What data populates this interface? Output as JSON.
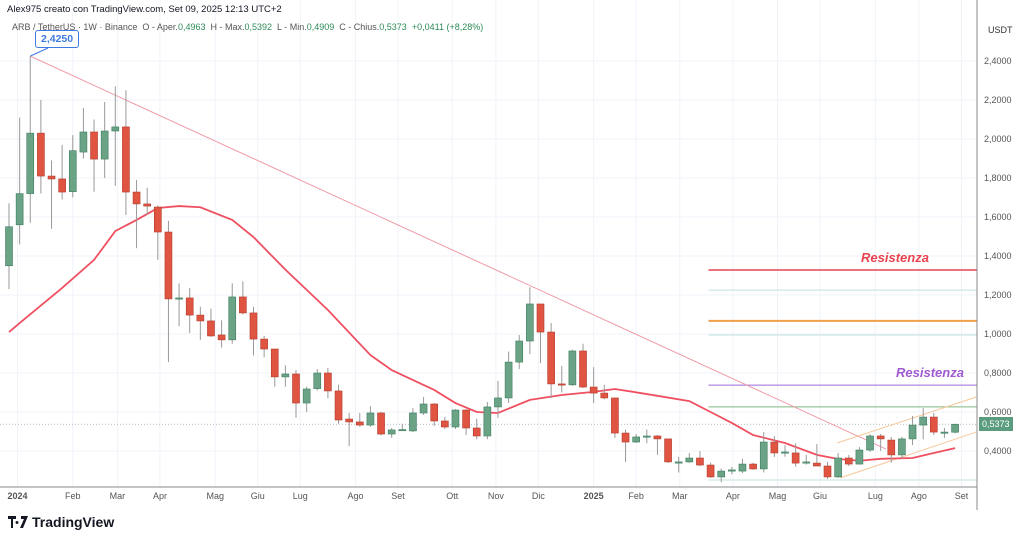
{
  "header": {
    "text": "Alex975 creato con TradingView.com, Set 09, 2025 12:13 UTC+2"
  },
  "legend": {
    "symbol": "ARB / TetherUS · 1W · Binance",
    "open_label": "O - Aper.",
    "open": "0,4963",
    "high_label": "H - Max.",
    "high": "0,5392",
    "low_label": "L - Min.",
    "low": "0,4909",
    "close_label": "C - Chius.",
    "close": "0,5373",
    "change": "+0,0411 (+8,28%)"
  },
  "brand": {
    "name": "TradingView"
  },
  "colors": {
    "up": "#6aa386",
    "down": "#e05541",
    "ma": "#ef5061",
    "trendline": "#f09aa6",
    "resistance_red": "#e8434e",
    "orange": "#f0a04b",
    "purple": "#9c6ade",
    "green_line": "#7fb87f",
    "fib": "#bfe3dc",
    "callout": "#3d7be0"
  },
  "chart_data": {
    "type": "candlestick",
    "currency_label": "USDT",
    "ylim": [
      0.2,
      2.6
    ],
    "yticks": [
      "0,4000",
      "0,6000",
      "0,8000",
      "1,0000",
      "1,2000",
      "1,4000",
      "1,6000",
      "1,8000",
      "2,0000",
      "2,2000",
      "2,4000"
    ],
    "ytick_values": [
      0.4,
      0.6,
      0.8,
      1.0,
      1.2,
      1.4,
      1.6,
      1.8,
      2.0,
      2.2,
      2.4
    ],
    "xticks": [
      {
        "label": "2024",
        "i": 0.8,
        "bold": true
      },
      {
        "label": "Feb",
        "i": 6
      },
      {
        "label": "Mar",
        "i": 10.2
      },
      {
        "label": "Apr",
        "i": 14.2
      },
      {
        "label": "Mag",
        "i": 19.4
      },
      {
        "label": "Giu",
        "i": 23.4
      },
      {
        "label": "Lug",
        "i": 27.4
      },
      {
        "label": "Ago",
        "i": 32.6
      },
      {
        "label": "Set",
        "i": 36.6
      },
      {
        "label": "Ott",
        "i": 41.7
      },
      {
        "label": "Nov",
        "i": 45.8
      },
      {
        "label": "Dic",
        "i": 49.8
      },
      {
        "label": "2025",
        "i": 55,
        "bold": true
      },
      {
        "label": "Feb",
        "i": 59
      },
      {
        "label": "Mar",
        "i": 63.1
      },
      {
        "label": "Apr",
        "i": 68.1
      },
      {
        "label": "Mag",
        "i": 72.3
      },
      {
        "label": "Giu",
        "i": 76.3
      },
      {
        "label": "Lug",
        "i": 81.5
      },
      {
        "label": "Ago",
        "i": 85.6
      },
      {
        "label": "Set",
        "i": 89.6
      }
    ],
    "candles_ohlc": [
      [
        1.35,
        1.67,
        1.23,
        1.55
      ],
      [
        1.56,
        2.11,
        1.46,
        1.72
      ],
      [
        1.72,
        2.425,
        1.57,
        2.03
      ],
      [
        2.03,
        2.2,
        1.72,
        1.81
      ],
      [
        1.81,
        1.89,
        1.54,
        1.795
      ],
      [
        1.795,
        1.97,
        1.69,
        1.728
      ],
      [
        1.73,
        2.02,
        1.7,
        1.94
      ],
      [
        1.933,
        2.16,
        1.9,
        2.036
      ],
      [
        2.036,
        2.1,
        1.73,
        1.897
      ],
      [
        1.897,
        2.19,
        1.8,
        2.041
      ],
      [
        2.041,
        2.27,
        1.76,
        2.062
      ],
      [
        2.062,
        2.25,
        1.61,
        1.728
      ],
      [
        1.728,
        1.79,
        1.44,
        1.667
      ],
      [
        1.667,
        1.75,
        1.61,
        1.656
      ],
      [
        1.651,
        1.66,
        1.38,
        1.523
      ],
      [
        1.523,
        1.58,
        0.856,
        1.18
      ],
      [
        1.18,
        1.26,
        1.04,
        1.185
      ],
      [
        1.185,
        1.236,
        1.005,
        1.097
      ],
      [
        1.097,
        1.14,
        0.97,
        1.067
      ],
      [
        1.067,
        1.13,
        0.985,
        0.99
      ],
      [
        0.995,
        1.07,
        0.93,
        0.97
      ],
      [
        0.97,
        1.26,
        0.95,
        1.19
      ],
      [
        1.19,
        1.27,
        1.1,
        1.108
      ],
      [
        1.108,
        1.14,
        0.89,
        0.974
      ],
      [
        0.974,
        0.99,
        0.88,
        0.923
      ],
      [
        0.923,
        0.923,
        0.73,
        0.78
      ],
      [
        0.78,
        0.84,
        0.73,
        0.795
      ],
      [
        0.795,
        0.815,
        0.57,
        0.646
      ],
      [
        0.646,
        0.73,
        0.6,
        0.718
      ],
      [
        0.72,
        0.82,
        0.71,
        0.8
      ],
      [
        0.8,
        0.826,
        0.67,
        0.708
      ],
      [
        0.708,
        0.74,
        0.54,
        0.559
      ],
      [
        0.564,
        0.595,
        0.425,
        0.549
      ],
      [
        0.549,
        0.595,
        0.525,
        0.533
      ],
      [
        0.533,
        0.63,
        0.525,
        0.595
      ],
      [
        0.595,
        0.6,
        0.48,
        0.487
      ],
      [
        0.487,
        0.518,
        0.467,
        0.508
      ],
      [
        0.508,
        0.54,
        0.503,
        0.51
      ],
      [
        0.503,
        0.62,
        0.497,
        0.595
      ],
      [
        0.595,
        0.677,
        0.585,
        0.641
      ],
      [
        0.641,
        0.646,
        0.528,
        0.554
      ],
      [
        0.554,
        0.575,
        0.513,
        0.523
      ],
      [
        0.523,
        0.615,
        0.513,
        0.61
      ],
      [
        0.61,
        0.615,
        0.482,
        0.518
      ],
      [
        0.518,
        0.565,
        0.46,
        0.477
      ],
      [
        0.477,
        0.651,
        0.46,
        0.626
      ],
      [
        0.626,
        0.76,
        0.57,
        0.672
      ],
      [
        0.672,
        0.91,
        0.646,
        0.856
      ],
      [
        0.856,
        0.995,
        0.82,
        0.964
      ],
      [
        0.964,
        1.24,
        0.897,
        1.154
      ],
      [
        1.154,
        1.154,
        0.85,
        1.01
      ],
      [
        1.01,
        1.056,
        0.672,
        0.744
      ],
      [
        0.744,
        0.836,
        0.7,
        0.739
      ],
      [
        0.739,
        0.92,
        0.734,
        0.913
      ],
      [
        0.913,
        0.95,
        0.723,
        0.728
      ],
      [
        0.728,
        0.83,
        0.646,
        0.697
      ],
      [
        0.697,
        0.74,
        0.665,
        0.672
      ],
      [
        0.672,
        0.672,
        0.467,
        0.492
      ],
      [
        0.492,
        0.51,
        0.344,
        0.446
      ],
      [
        0.446,
        0.487,
        0.441,
        0.472
      ],
      [
        0.472,
        0.51,
        0.44,
        0.477
      ],
      [
        0.477,
        0.482,
        0.38,
        0.462
      ],
      [
        0.462,
        0.462,
        0.339,
        0.344
      ],
      [
        0.344,
        0.37,
        0.29,
        0.344
      ],
      [
        0.344,
        0.39,
        0.339,
        0.364
      ],
      [
        0.364,
        0.4,
        0.323,
        0.328
      ],
      [
        0.328,
        0.34,
        0.262,
        0.267
      ],
      [
        0.267,
        0.31,
        0.24,
        0.297
      ],
      [
        0.303,
        0.318,
        0.28,
        0.303
      ],
      [
        0.297,
        0.36,
        0.287,
        0.333
      ],
      [
        0.333,
        0.34,
        0.303,
        0.308
      ],
      [
        0.308,
        0.497,
        0.29,
        0.446
      ],
      [
        0.446,
        0.477,
        0.37,
        0.39
      ],
      [
        0.395,
        0.43,
        0.37,
        0.395
      ],
      [
        0.39,
        0.44,
        0.32,
        0.338
      ],
      [
        0.344,
        0.38,
        0.33,
        0.344
      ],
      [
        0.338,
        0.436,
        0.323,
        0.323
      ],
      [
        0.323,
        0.344,
        0.257,
        0.267
      ],
      [
        0.267,
        0.39,
        0.262,
        0.364
      ],
      [
        0.364,
        0.38,
        0.323,
        0.333
      ],
      [
        0.333,
        0.42,
        0.33,
        0.405
      ],
      [
        0.405,
        0.487,
        0.395,
        0.477
      ],
      [
        0.477,
        0.487,
        0.4,
        0.462
      ],
      [
        0.456,
        0.472,
        0.34,
        0.38
      ],
      [
        0.38,
        0.472,
        0.36,
        0.462
      ],
      [
        0.462,
        0.58,
        0.43,
        0.533
      ],
      [
        0.533,
        0.62,
        0.46,
        0.574
      ],
      [
        0.574,
        0.595,
        0.482,
        0.497
      ],
      [
        0.497,
        0.518,
        0.467,
        0.497
      ],
      [
        0.4963,
        0.5392,
        0.4909,
        0.5373
      ]
    ],
    "moving_average": [
      [
        0,
        1.01
      ],
      [
        1,
        1.056
      ],
      [
        5,
        1.236
      ],
      [
        8,
        1.38
      ],
      [
        10,
        1.528
      ],
      [
        12,
        1.585
      ],
      [
        14,
        1.646
      ],
      [
        16,
        1.656
      ],
      [
        18,
        1.65
      ],
      [
        21,
        1.585
      ],
      [
        23,
        1.497
      ],
      [
        26,
        1.33
      ],
      [
        30,
        1.123
      ],
      [
        34,
        0.892
      ],
      [
        36,
        0.815
      ],
      [
        40,
        0.713
      ],
      [
        42,
        0.646
      ],
      [
        44,
        0.6
      ],
      [
        46,
        0.595
      ],
      [
        49,
        0.662
      ],
      [
        52,
        0.687
      ],
      [
        55,
        0.703
      ],
      [
        57,
        0.718
      ],
      [
        60,
        0.692
      ],
      [
        64,
        0.656
      ],
      [
        66,
        0.6
      ],
      [
        68,
        0.544
      ],
      [
        70,
        0.482
      ],
      [
        73,
        0.441
      ],
      [
        76,
        0.38
      ],
      [
        78,
        0.359
      ],
      [
        80,
        0.35
      ],
      [
        82,
        0.36
      ],
      [
        85,
        0.364
      ],
      [
        87,
        0.39
      ],
      [
        89,
        0.415
      ]
    ],
    "trendline": {
      "from": [
        2,
        2.425
      ],
      "to": [
        82.5,
        0.41
      ]
    },
    "channel": {
      "upper": {
        "from": [
          77.9,
          0.441
        ],
        "to": [
          91,
          0.677
        ]
      },
      "lower": {
        "from": [
          78.2,
          0.262
        ],
        "to": [
          91,
          0.497
        ]
      }
    },
    "levels": [
      {
        "value": 1.328,
        "color": "resistance_red",
        "width": 1.5,
        "label": "Resistenza",
        "label_color": "#e8434e"
      },
      {
        "value": 1.225,
        "color": "fib",
        "width": 1
      },
      {
        "value": 1.067,
        "color": "orange",
        "width": 2
      },
      {
        "value": 0.995,
        "color": "fib",
        "width": 1
      },
      {
        "value": 0.738,
        "color": "purple",
        "width": 1,
        "label": "Resistenza",
        "label_color": "#a05bd0"
      },
      {
        "value": 0.626,
        "color": "green_line",
        "width": 1
      },
      {
        "value": 0.251,
        "color": "fib",
        "width": 1
      }
    ],
    "levels_start_i": 65.8,
    "high_callout": "2,4250",
    "last_price": "0,5373",
    "last_price_value": 0.5373
  }
}
